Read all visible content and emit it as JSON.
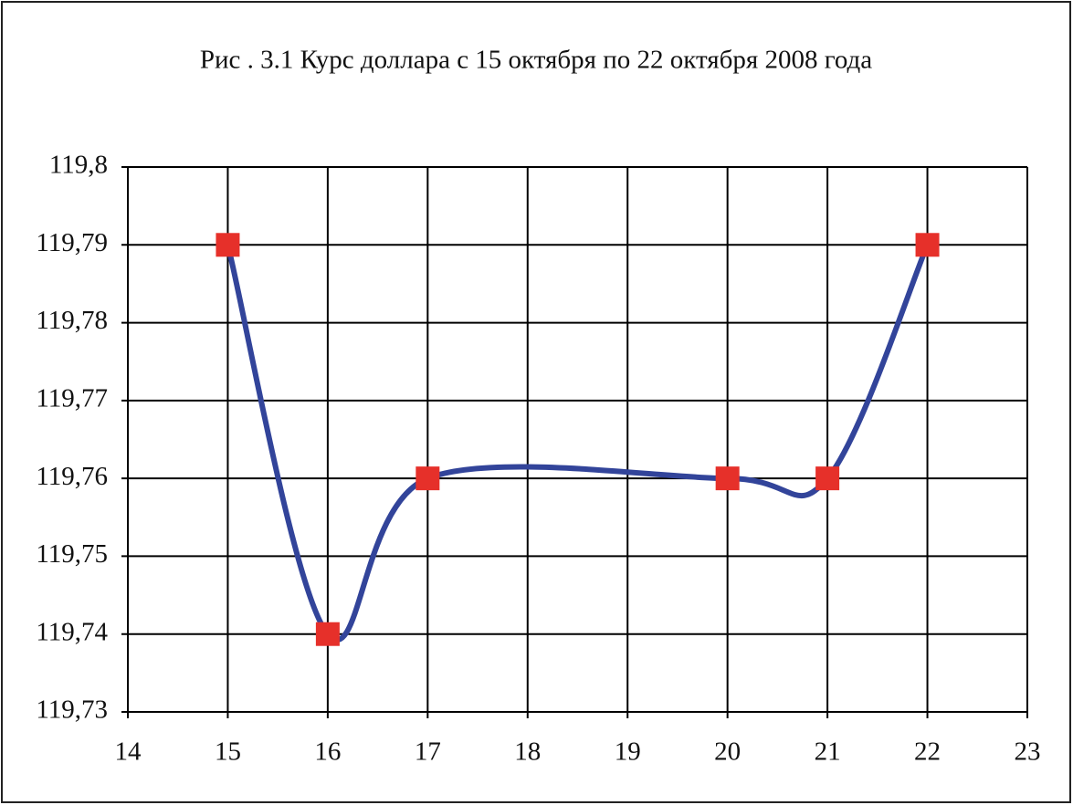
{
  "chart_data": {
    "type": "line",
    "title": "Рис . 3.1 Курс доллара с 15 октября по 22 октября 2008 года",
    "x": [
      15,
      16,
      17,
      20,
      21,
      22
    ],
    "values": [
      119.79,
      119.74,
      119.76,
      119.76,
      119.76,
      119.79
    ],
    "color": "#32449a",
    "marker_color": "#e6302a",
    "smooth": true,
    "xlim": [
      14,
      23
    ],
    "xticks": [
      14,
      15,
      16,
      17,
      18,
      19,
      20,
      21,
      22,
      23
    ],
    "ylim": [
      119.73,
      119.8
    ],
    "yticks": [
      {
        "value": 119.73,
        "label": "119,73"
      },
      {
        "value": 119.74,
        "label": "119,74"
      },
      {
        "value": 119.75,
        "label": "119,75"
      },
      {
        "value": 119.76,
        "label": "119,76"
      },
      {
        "value": 119.77,
        "label": "119,77"
      },
      {
        "value": 119.78,
        "label": "119,78"
      },
      {
        "value": 119.79,
        "label": "119,79"
      },
      {
        "value": 119.8,
        "label": "119,8"
      }
    ],
    "grid": true
  }
}
